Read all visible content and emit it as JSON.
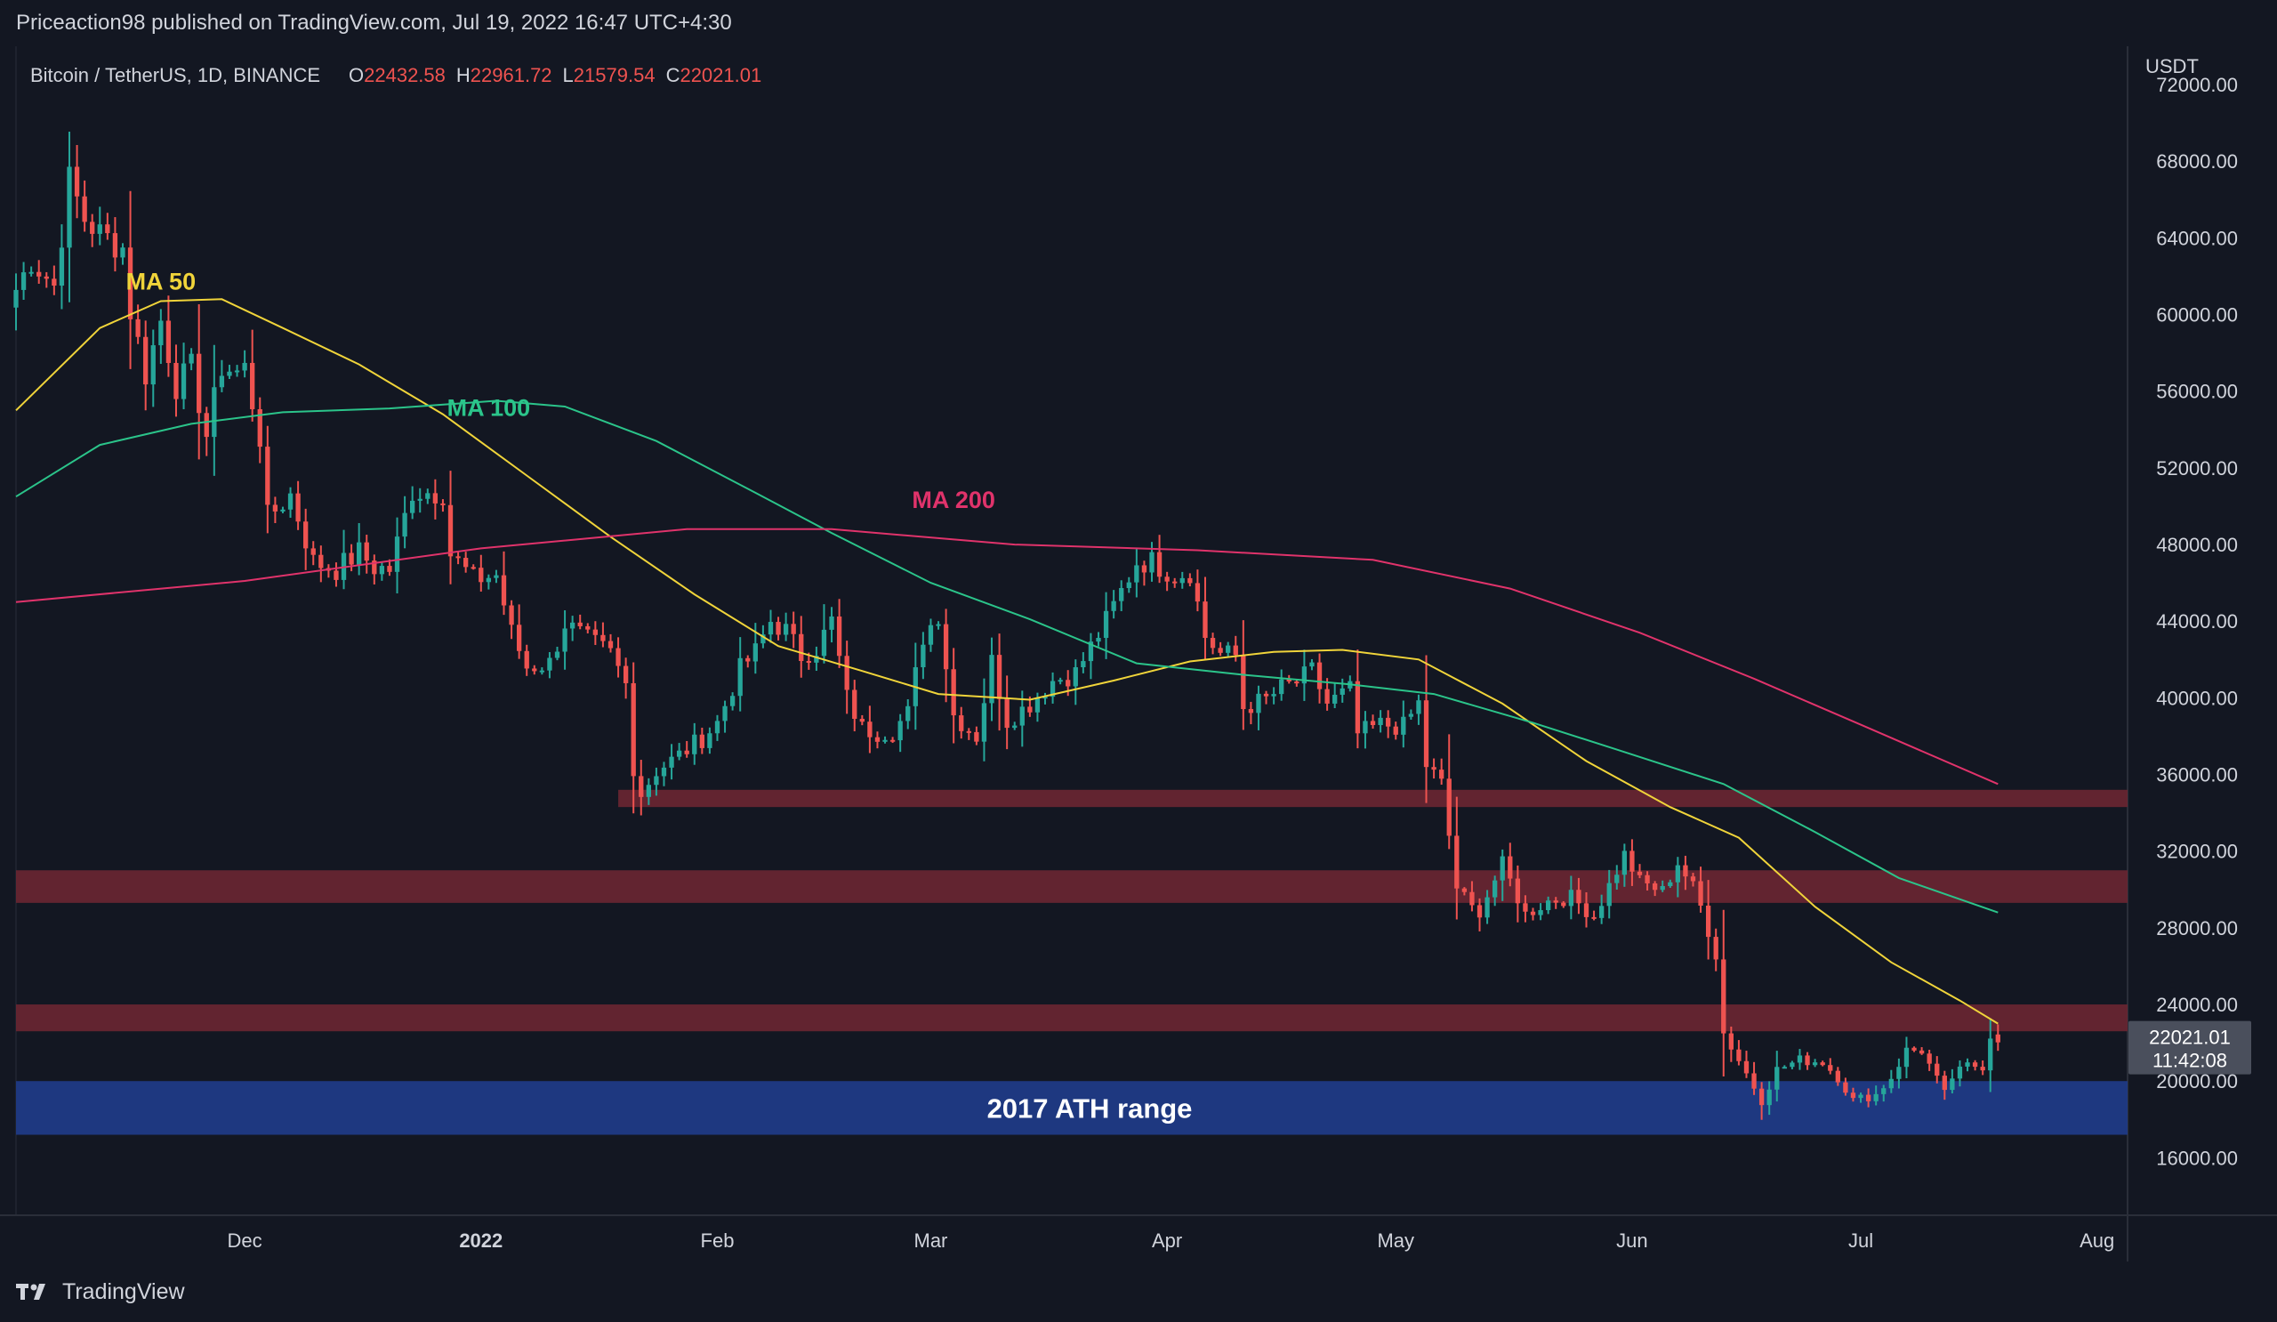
{
  "publish_line": "Priceaction98 published on TradingView.com, Jul 19, 2022 16:47 UTC+4:30",
  "symbol_line": "Bitcoin / TetherUS, 1D, BINANCE",
  "ohlc": {
    "o_label": "O",
    "o_value": "22432.58",
    "h_label": "H",
    "h_value": "22961.72",
    "l_label": "L",
    "l_value": "21579.54",
    "c_label": "C",
    "c_value": "22021.01"
  },
  "axis_currency": "USDT",
  "price_tag": {
    "price": "22021.01",
    "countdown": "11:42:08"
  },
  "footer_brand": "TradingView",
  "colors": {
    "background": "#131722",
    "up_candle": "#26a69a",
    "down_candle": "#ef5350",
    "ma50": "#f0d43a",
    "ma100": "#2bc48a",
    "ma200": "#e0336b",
    "resistance_zone": "#6b2632",
    "ath_zone": "#1f3a86"
  },
  "chart_data": {
    "type": "candlestick",
    "title": "Bitcoin / TetherUS, 1D, BINANCE",
    "ylabel": "USDT",
    "ylim": [
      13000,
      74000
    ],
    "xlim": [
      "2021-11-01",
      "2022-08-05"
    ],
    "y_ticks": [
      16000,
      20000,
      24000,
      28000,
      32000,
      36000,
      40000,
      44000,
      48000,
      52000,
      56000,
      60000,
      64000,
      68000,
      72000
    ],
    "x_ticks": [
      {
        "label": "Dec",
        "date": "2021-12-01"
      },
      {
        "label": "2022",
        "date": "2022-01-01"
      },
      {
        "label": "Feb",
        "date": "2022-02-01"
      },
      {
        "label": "Mar",
        "date": "2022-03-01"
      },
      {
        "label": "Apr",
        "date": "2022-04-01"
      },
      {
        "label": "May",
        "date": "2022-05-01"
      },
      {
        "label": "Jun",
        "date": "2022-06-01"
      },
      {
        "label": "Jul",
        "date": "2022-07-01"
      },
      {
        "label": "Aug",
        "date": "2022-08-01"
      }
    ],
    "close_keypoints": [
      [
        "2021-11-01",
        61300
      ],
      [
        "2021-11-03",
        62900
      ],
      [
        "2021-11-06",
        61500
      ],
      [
        "2021-11-08",
        67000
      ],
      [
        "2021-11-10",
        65000
      ],
      [
        "2021-11-12",
        64200
      ],
      [
        "2021-11-15",
        63500
      ],
      [
        "2021-11-16",
        60200
      ],
      [
        "2021-11-18",
        56900
      ],
      [
        "2021-11-20",
        59700
      ],
      [
        "2021-11-22",
        56300
      ],
      [
        "2021-11-24",
        57200
      ],
      [
        "2021-11-26",
        53700
      ],
      [
        "2021-11-28",
        57300
      ],
      [
        "2021-11-30",
        57000
      ],
      [
        "2021-12-01",
        57200
      ],
      [
        "2021-12-03",
        53600
      ],
      [
        "2021-12-04",
        49400
      ],
      [
        "2021-12-07",
        50600
      ],
      [
        "2021-12-10",
        47100
      ],
      [
        "2021-12-13",
        46700
      ],
      [
        "2021-12-16",
        47600
      ],
      [
        "2021-12-18",
        46800
      ],
      [
        "2021-12-20",
        46700
      ],
      [
        "2021-12-23",
        50800
      ],
      [
        "2021-12-27",
        50700
      ],
      [
        "2021-12-28",
        47500
      ],
      [
        "2021-12-31",
        46200
      ],
      [
        "2022-01-03",
        46400
      ],
      [
        "2022-01-05",
        43400
      ],
      [
        "2022-01-07",
        41600
      ],
      [
        "2022-01-10",
        41800
      ],
      [
        "2022-01-12",
        43900
      ],
      [
        "2022-01-15",
        43000
      ],
      [
        "2022-01-18",
        42300
      ],
      [
        "2022-01-20",
        40700
      ],
      [
        "2022-01-21",
        36400
      ],
      [
        "2022-01-22",
        35000
      ],
      [
        "2022-01-24",
        36200
      ],
      [
        "2022-01-27",
        37000
      ],
      [
        "2022-01-30",
        37900
      ],
      [
        "2022-02-01",
        38700
      ],
      [
        "2022-02-04",
        41500
      ],
      [
        "2022-02-06",
        42400
      ],
      [
        "2022-02-08",
        44000
      ],
      [
        "2022-02-10",
        43500
      ],
      [
        "2022-02-12",
        42200
      ],
      [
        "2022-02-14",
        42600
      ],
      [
        "2022-02-16",
        44000
      ],
      [
        "2022-02-18",
        40000
      ],
      [
        "2022-02-20",
        38400
      ],
      [
        "2022-02-22",
        38200
      ],
      [
        "2022-02-24",
        38300
      ],
      [
        "2022-02-26",
        39200
      ],
      [
        "2022-02-28",
        43200
      ],
      [
        "2022-03-02",
        44400
      ],
      [
        "2022-03-04",
        39100
      ],
      [
        "2022-03-07",
        38000
      ],
      [
        "2022-03-09",
        41900
      ],
      [
        "2022-03-11",
        38800
      ],
      [
        "2022-03-14",
        39700
      ],
      [
        "2022-03-17",
        40900
      ],
      [
        "2022-03-20",
        41300
      ],
      [
        "2022-03-24",
        44000
      ],
      [
        "2022-03-28",
        47100
      ],
      [
        "2022-03-30",
        47100
      ],
      [
        "2022-04-02",
        46400
      ],
      [
        "2022-04-04",
        46600
      ],
      [
        "2022-04-06",
        43200
      ],
      [
        "2022-04-08",
        42300
      ],
      [
        "2022-04-10",
        42200
      ],
      [
        "2022-04-11",
        39500
      ],
      [
        "2022-04-14",
        39900
      ],
      [
        "2022-04-16",
        40500
      ],
      [
        "2022-04-18",
        40800
      ],
      [
        "2022-04-20",
        41400
      ],
      [
        "2022-04-22",
        39700
      ],
      [
        "2022-04-25",
        40400
      ],
      [
        "2022-04-26",
        38100
      ],
      [
        "2022-04-29",
        38600
      ],
      [
        "2022-05-02",
        38500
      ],
      [
        "2022-05-04",
        39700
      ],
      [
        "2022-05-05",
        36500
      ],
      [
        "2022-05-07",
        35500
      ],
      [
        "2022-05-09",
        30100
      ],
      [
        "2022-05-11",
        29000
      ],
      [
        "2022-05-12",
        28900
      ],
      [
        "2022-05-15",
        31300
      ],
      [
        "2022-05-18",
        28700
      ],
      [
        "2022-05-21",
        29400
      ],
      [
        "2022-05-24",
        29600
      ],
      [
        "2022-05-27",
        28600
      ],
      [
        "2022-05-31",
        31800
      ],
      [
        "2022-06-02",
        30400
      ],
      [
        "2022-06-05",
        29900
      ],
      [
        "2022-06-07",
        31400
      ],
      [
        "2022-06-09",
        30100
      ],
      [
        "2022-06-10",
        29100
      ],
      [
        "2022-06-12",
        26600
      ],
      [
        "2022-06-13",
        22500
      ],
      [
        "2022-06-16",
        20400
      ],
      [
        "2022-06-18",
        19000
      ],
      [
        "2022-06-20",
        20600
      ],
      [
        "2022-06-23",
        21100
      ],
      [
        "2022-06-26",
        21000
      ],
      [
        "2022-06-28",
        20200
      ],
      [
        "2022-06-30",
        19000
      ],
      [
        "2022-07-03",
        19300
      ],
      [
        "2022-07-05",
        20200
      ],
      [
        "2022-07-07",
        21600
      ],
      [
        "2022-07-09",
        21600
      ],
      [
        "2022-07-12",
        19300
      ],
      [
        "2022-07-13",
        20200
      ],
      [
        "2022-07-15",
        20800
      ],
      [
        "2022-07-17",
        20800
      ],
      [
        "2022-07-18",
        22400
      ],
      [
        "2022-07-19",
        22021
      ]
    ],
    "overlays": [
      {
        "name": "MA 50",
        "values": [
          [
            "2021-11-01",
            55000
          ],
          [
            "2021-11-12",
            59300
          ],
          [
            "2021-11-20",
            60700
          ],
          [
            "2021-11-28",
            60800
          ],
          [
            "2021-12-06",
            59300
          ],
          [
            "2021-12-16",
            57400
          ],
          [
            "2021-12-27",
            54800
          ],
          [
            "2022-01-07",
            51600
          ],
          [
            "2022-01-18",
            48400
          ],
          [
            "2022-01-29",
            45400
          ],
          [
            "2022-02-09",
            42700
          ],
          [
            "2022-02-20",
            41400
          ],
          [
            "2022-03-02",
            40200
          ],
          [
            "2022-03-14",
            39900
          ],
          [
            "2022-03-25",
            40900
          ],
          [
            "2022-04-04",
            41900
          ],
          [
            "2022-04-15",
            42400
          ],
          [
            "2022-04-24",
            42500
          ],
          [
            "2022-05-04",
            42000
          ],
          [
            "2022-05-15",
            39700
          ],
          [
            "2022-05-26",
            36700
          ],
          [
            "2022-06-06",
            34300
          ],
          [
            "2022-06-15",
            32700
          ],
          [
            "2022-06-25",
            29100
          ],
          [
            "2022-07-05",
            26200
          ],
          [
            "2022-07-14",
            24200
          ],
          [
            "2022-07-19",
            23000
          ]
        ]
      },
      {
        "name": "MA 100",
        "values": [
          [
            "2021-11-01",
            50500
          ],
          [
            "2021-11-12",
            53200
          ],
          [
            "2021-11-24",
            54300
          ],
          [
            "2021-12-06",
            54900
          ],
          [
            "2021-12-20",
            55100
          ],
          [
            "2022-01-03",
            55500
          ],
          [
            "2022-01-12",
            55200
          ],
          [
            "2022-01-24",
            53400
          ],
          [
            "2022-02-06",
            50700
          ],
          [
            "2022-02-16",
            48600
          ],
          [
            "2022-03-01",
            46000
          ],
          [
            "2022-03-14",
            44100
          ],
          [
            "2022-03-28",
            41800
          ],
          [
            "2022-04-11",
            41200
          ],
          [
            "2022-04-25",
            40700
          ],
          [
            "2022-05-06",
            40200
          ],
          [
            "2022-05-19",
            38700
          ],
          [
            "2022-05-30",
            37300
          ],
          [
            "2022-06-13",
            35500
          ],
          [
            "2022-06-25",
            33000
          ],
          [
            "2022-07-06",
            30600
          ],
          [
            "2022-07-19",
            28800
          ]
        ]
      },
      {
        "name": "MA 200",
        "values": [
          [
            "2021-11-01",
            45000
          ],
          [
            "2021-12-01",
            46100
          ],
          [
            "2022-01-01",
            47800
          ],
          [
            "2022-01-28",
            48800
          ],
          [
            "2022-02-16",
            48800
          ],
          [
            "2022-03-12",
            48000
          ],
          [
            "2022-04-05",
            47700
          ],
          [
            "2022-04-28",
            47200
          ],
          [
            "2022-05-16",
            45700
          ],
          [
            "2022-06-02",
            43400
          ],
          [
            "2022-06-17",
            41000
          ],
          [
            "2022-07-01",
            38600
          ],
          [
            "2022-07-19",
            35500
          ]
        ]
      }
    ],
    "zones": [
      {
        "kind": "resistance",
        "from": 34300,
        "to": 35200,
        "start": "2022-01-19",
        "end": "2022-08-05"
      },
      {
        "kind": "resistance",
        "from": 29300,
        "to": 31000,
        "start": "2021-11-01",
        "end": "2022-08-05"
      },
      {
        "kind": "resistance",
        "from": 22600,
        "to": 24000,
        "start": "2021-11-01",
        "end": "2022-08-05"
      },
      {
        "kind": "support",
        "label": "2017 ATH range",
        "from": 17200,
        "to": 20000,
        "start": "2021-11-01",
        "end": "2022-08-05"
      }
    ]
  }
}
